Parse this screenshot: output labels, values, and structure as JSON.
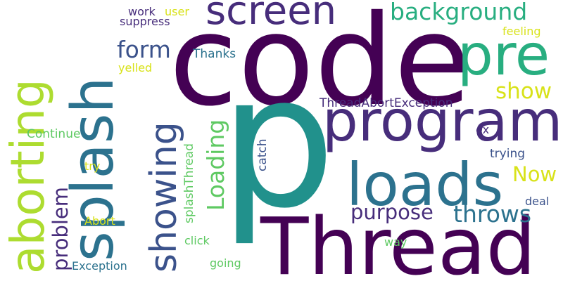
{
  "palette": {
    "dark_purple": "#440154",
    "indigo": "#472d7b",
    "slate_blue": "#3b528b",
    "steel_blue": "#2c728e",
    "teal": "#21918c",
    "green": "#28ae80",
    "light_green": "#5ec962",
    "lime": "#addc30",
    "yellow": "#d8e219"
  },
  "words": [
    "code",
    "p",
    "Thread",
    "program",
    "splash",
    "loads",
    "pre",
    "aborting",
    "screen",
    "showing",
    "background",
    "form",
    "Loading",
    "purpose",
    "throws",
    "show",
    "Now",
    "problem",
    "ThreadAbortException",
    "Thanks",
    "splashThread",
    "catch",
    "Continue",
    "work",
    "user",
    "suppress",
    "feeling",
    "yelled",
    "try",
    "Abort",
    "trying",
    "ex",
    "deal",
    "click",
    "way",
    "Exception",
    "going"
  ]
}
